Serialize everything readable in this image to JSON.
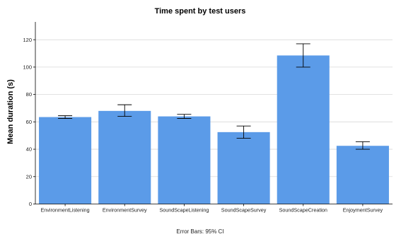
{
  "chart_data": {
    "type": "bar",
    "title": "Time spent by test users",
    "xlabel": "",
    "ylabel": "Mean duration (s)",
    "ylim": [
      0,
      133
    ],
    "yticks": [
      0,
      20,
      40,
      60,
      80,
      100,
      120
    ],
    "grid": true,
    "categories": [
      "EnvironmentListening",
      "EnvironmentSurvey",
      "SoundScapeListening",
      "SoundScapeSurvey",
      "SoundScapeCreation",
      "EnjoymentSurvey"
    ],
    "values": [
      63.5,
      68,
      64,
      52.5,
      108.5,
      42.5
    ],
    "error_low": [
      62.5,
      64,
      62.5,
      48,
      100,
      40
    ],
    "error_high": [
      64.5,
      72.5,
      65.5,
      57,
      117,
      45.5
    ],
    "bar_color": "#5b9be8",
    "footnote": "Error Bars: 95% CI"
  }
}
